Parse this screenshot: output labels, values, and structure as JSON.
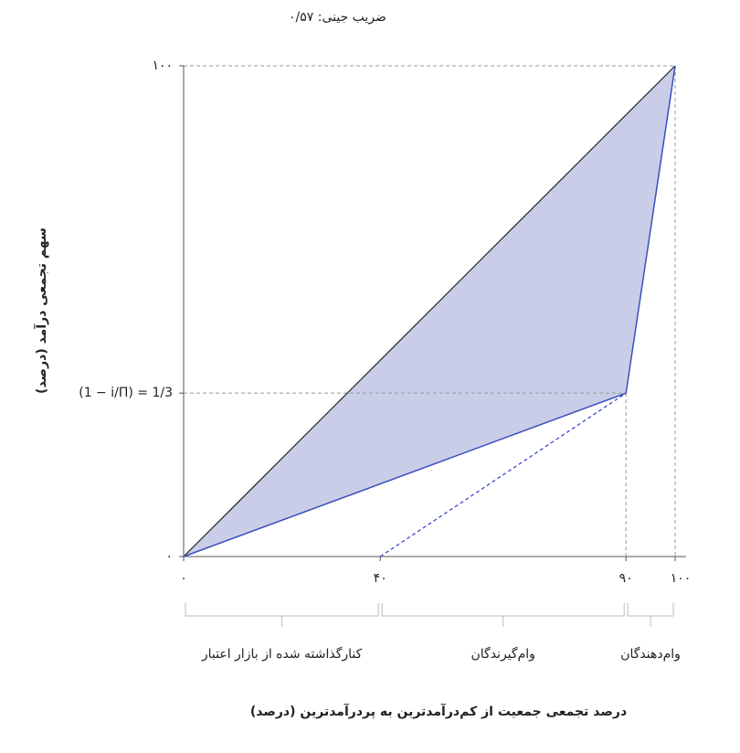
{
  "chart_data": {
    "type": "lorenz",
    "subtitle": "ضریب جینی: ۰/۵۷",
    "x_label": "درصد تجمعی جمعیت از کم‌درآمدترین به پردرآمدترین (درصد)",
    "y_label": "سهم تجمعی درآمد (درصد)",
    "xlim": [
      0,
      100
    ],
    "ylim": [
      0,
      100
    ],
    "xticks": [
      {
        "value": 0,
        "label": "۰"
      },
      {
        "value": 40,
        "label": "۴۰"
      },
      {
        "value": 90,
        "label": "۹۰"
      },
      {
        "value": 100,
        "label": "۱۰۰"
      }
    ],
    "yticks": [
      {
        "value": 0,
        "label": "۰"
      },
      {
        "value": 33.3,
        "label": "(1 − i/Π) = 1/3"
      },
      {
        "value": 100,
        "label": "۱۰۰"
      }
    ],
    "equality": {
      "color": "#222222",
      "x": [
        0,
        100
      ],
      "values": [
        0,
        100
      ]
    },
    "lorenz": {
      "color": "#3a4dbf",
      "fill": "#c9cde8",
      "x": [
        0,
        90,
        100
      ],
      "values": [
        0,
        33.3,
        100
      ]
    },
    "borrower_line": {
      "color": "#3a4dbf",
      "x": [
        40,
        90
      ],
      "values": [
        0,
        33.3
      ]
    },
    "groups": [
      {
        "label": "کنارگذاشته شده از بازار اعتبار",
        "range": [
          0,
          40
        ]
      },
      {
        "label": "وام‌گیرندگان",
        "range": [
          40,
          90
        ]
      },
      {
        "label": "وام‌دهندگان",
        "range": [
          90,
          100
        ]
      }
    ]
  }
}
